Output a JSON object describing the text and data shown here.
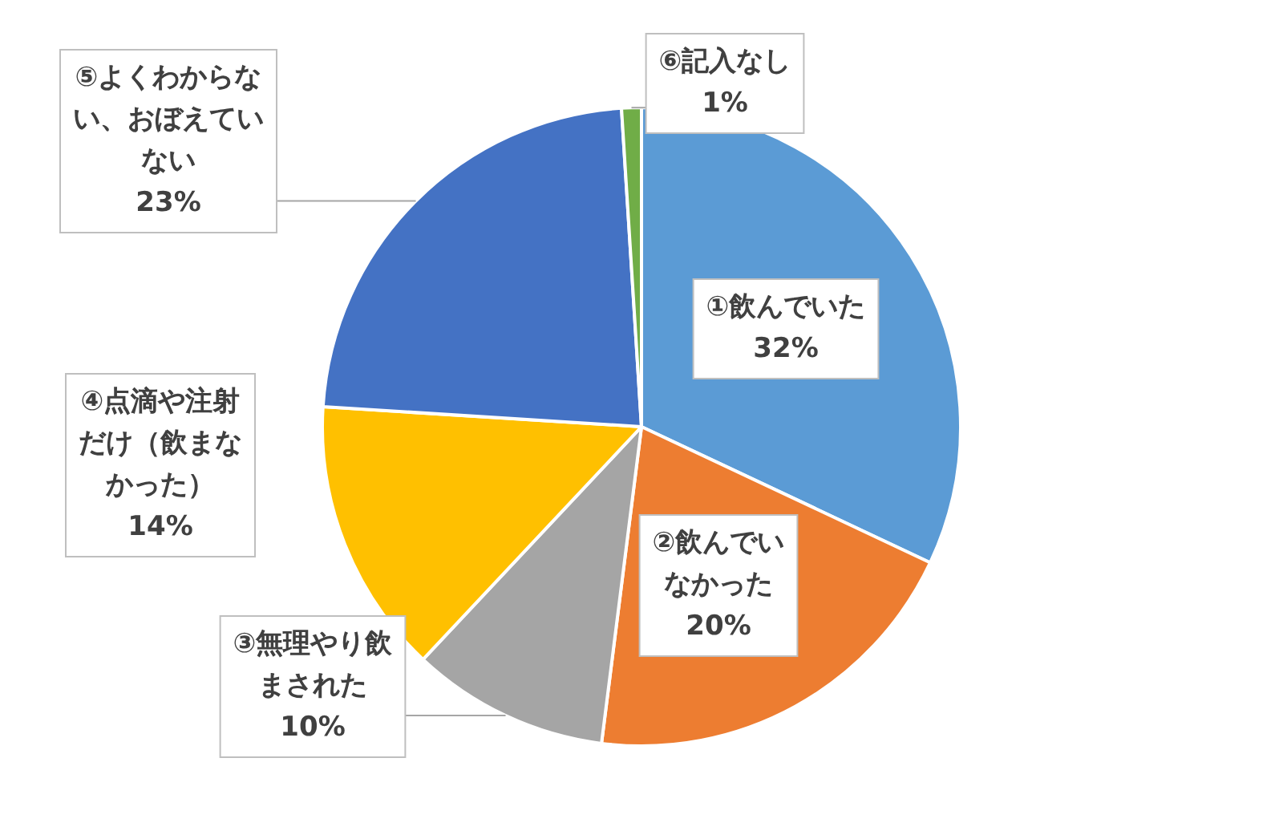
{
  "chart_data": {
    "type": "pie",
    "categories": [
      "①飲んでいた",
      "②飲んでいなかった",
      "③無理やり飲まされた",
      "④点滴や注射だけ（飲まなかった）",
      "⑤よくわからない、おぼえていない",
      "⑥記入なし"
    ],
    "values": [
      32,
      20,
      10,
      14,
      23,
      1
    ],
    "value_labels": [
      "32%",
      "20%",
      "10%",
      "14%",
      "23%",
      "1%"
    ],
    "colors": [
      "#5b9bd5",
      "#ed7d31",
      "#a5a5a5",
      "#ffc000",
      "#4472c4",
      "#70ad47"
    ],
    "legend": false
  }
}
